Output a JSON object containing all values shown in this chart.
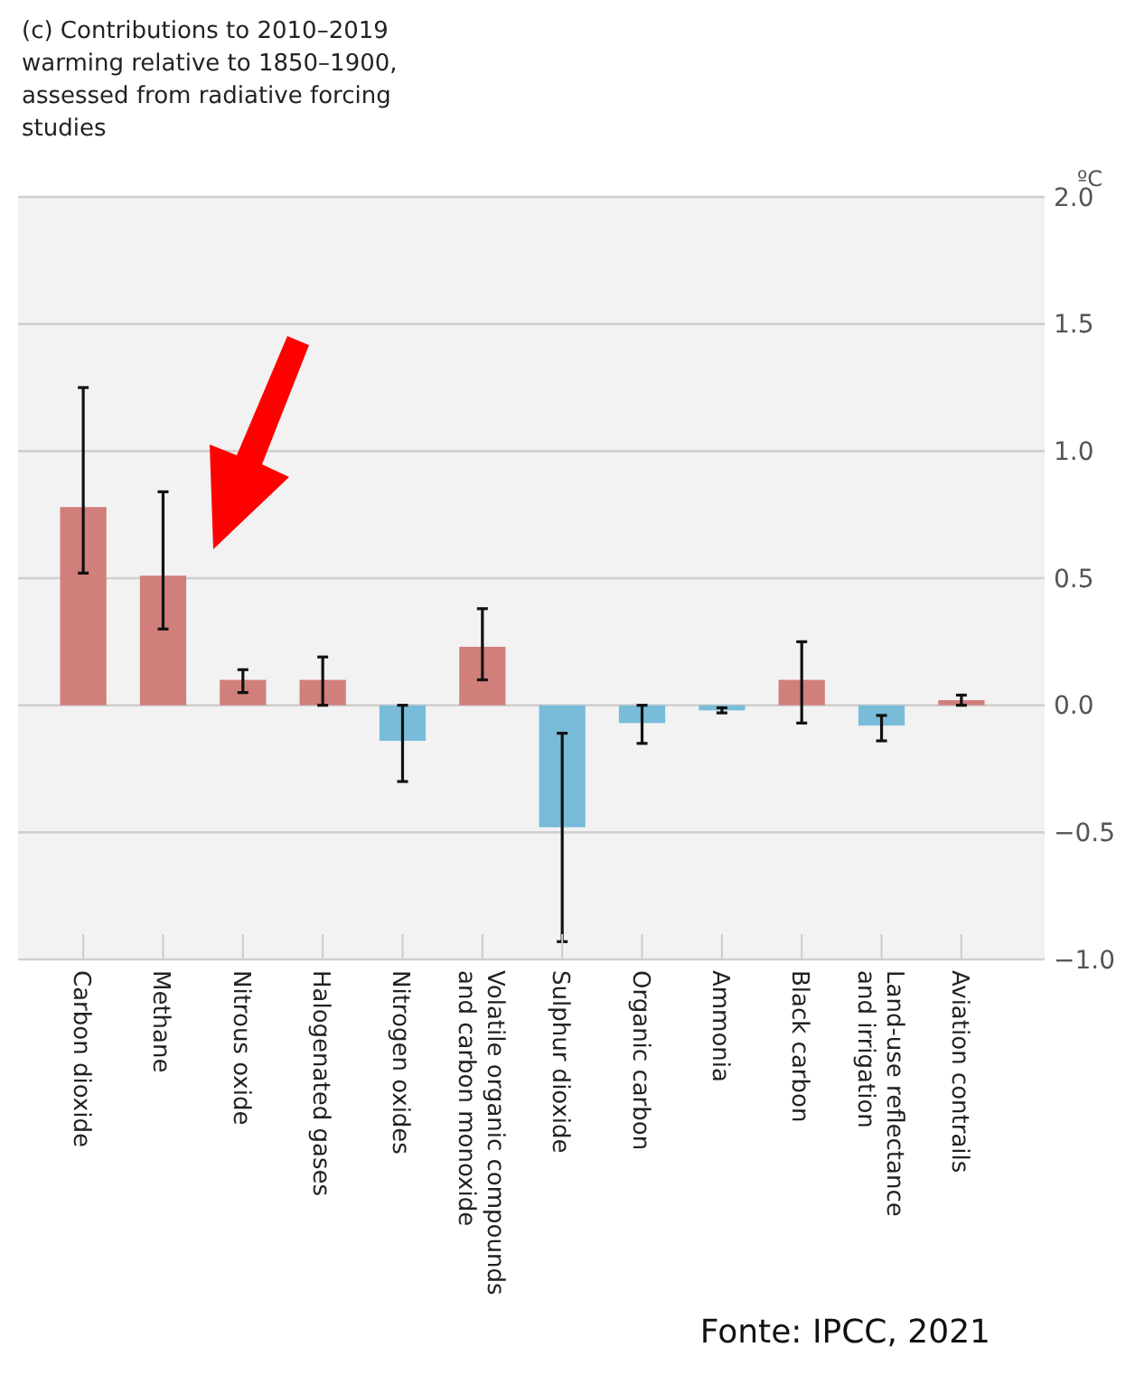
{
  "chart_data": {
    "type": "bar",
    "title": "(c) Contributions to 2010–2019 warming relative to 1850–1900, assessed from radiative forcing studies",
    "ylabel": "ºC",
    "categories": [
      "Carbon dioxide",
      "Methane",
      "Nitrous oxide",
      "Halogenated gases",
      "Nitrogen oxides",
      "Volatile organic compounds and carbon monoxide",
      "Sulphur dioxide",
      "Organic carbon",
      "Ammonia",
      "Black carbon",
      "Land-use reflectance and irrigation",
      "Aviation contrails"
    ],
    "values": [
      0.78,
      0.51,
      0.1,
      0.1,
      -0.14,
      0.23,
      -0.48,
      -0.07,
      -0.02,
      0.1,
      -0.08,
      0.02
    ],
    "colors": [
      "#d17f7b",
      "#d17f7b",
      "#d17f7b",
      "#d17f7b",
      "#78bcd9",
      "#d17f7b",
      "#78bcd9",
      "#78bcd9",
      "#78bcd9",
      "#d17f7b",
      "#78bcd9",
      "#d17f7b"
    ],
    "errors": [
      [
        0.52,
        1.25
      ],
      [
        0.3,
        0.84
      ],
      [
        0.05,
        0.14
      ],
      [
        0,
        0.19
      ],
      [
        -0.3,
        0
      ],
      [
        0.1,
        0.38
      ],
      [
        -0.93,
        -0.11
      ],
      [
        -0.15,
        0
      ],
      [
        -0.03,
        -0.01
      ],
      [
        -0.07,
        0.25
      ],
      [
        -0.14,
        -0.04
      ],
      [
        0,
        0.04
      ]
    ],
    "ylim": [
      -1,
      2
    ],
    "yticks": [
      {
        "value": -1,
        "label": "−1.0"
      },
      {
        "value": -0.5,
        "label": "−0.5"
      },
      {
        "value": 0,
        "label": "0.0"
      },
      {
        "value": 0.5,
        "label": "0.5"
      },
      {
        "value": 1,
        "label": "1.0"
      },
      {
        "value": 1.5,
        "label": "1.5"
      },
      {
        "value": 2,
        "label": "2.0"
      }
    ],
    "grid": "y",
    "annotations": [
      "Fonte: IPCC, 2021"
    ]
  }
}
